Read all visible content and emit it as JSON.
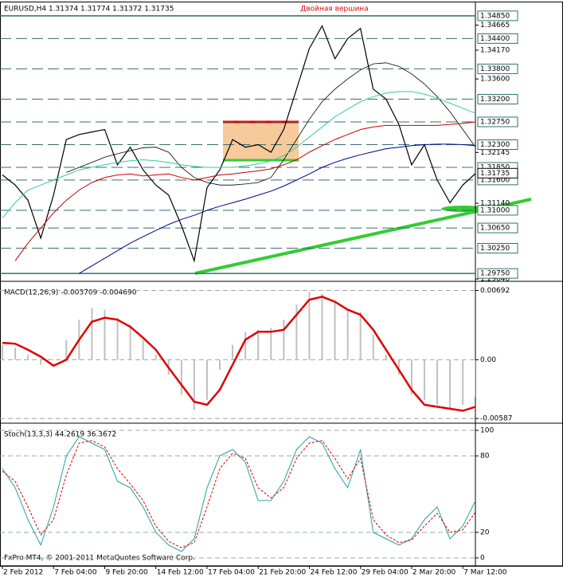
{
  "chart_data": [
    {
      "type": "line",
      "title": "EURUSD,H4  1.31374 1.31774 1.31372 1.31735",
      "annotation": "Двойная вершина",
      "ylim": [
        1.2961,
        1.351
      ],
      "yticks": [
        1.34665,
        {
          "value": 1.3417,
          "label": "1.34170"
        },
        {
          "value": 1.336,
          "label": "1.33600"
        },
        1.32145,
        {
          "value": 1.3114,
          "label": "1.31140"
        },
        {
          "value": 1.2964,
          "label": "1.29640"
        }
      ],
      "levels": [
        {
          "value": 1.3485,
          "label": "1.34850"
        },
        {
          "value": 1.344,
          "label": "1.34400"
        },
        {
          "value": 1.338,
          "label": "1.33800"
        },
        {
          "value": 1.332,
          "label": "1.33200"
        },
        {
          "value": 1.3275,
          "label": "1.32750"
        },
        {
          "value": 1.323,
          "label": "1.32300"
        },
        {
          "value": 1.3185,
          "label": "1.31850"
        },
        {
          "value": 1.316,
          "label": "1.31600"
        },
        {
          "value": 1.31,
          "label": "1.31000"
        },
        {
          "value": 1.3065,
          "label": "1.30650"
        },
        {
          "value": 1.3025,
          "label": "1.30250"
        },
        {
          "value": 1.2975,
          "label": "1.29750"
        }
      ],
      "last_price": {
        "value": 1.31735,
        "label": "1.31735"
      },
      "level_color": "#2f6f6f",
      "series": [
        {
          "color": "#000000",
          "width": 1.2,
          "values": [
            1.317,
            1.315,
            1.312,
            1.3045,
            1.313,
            1.324,
            1.325,
            1.3255,
            1.326,
            1.319,
            1.3225,
            1.318,
            1.315,
            1.313,
            1.307,
            1.3,
            1.3145,
            1.318,
            1.324,
            1.3225,
            1.323,
            1.3215,
            1.326,
            1.334,
            1.342,
            1.3465,
            1.34,
            1.344,
            1.346,
            1.334,
            1.332,
            1.327,
            1.319,
            1.323,
            1.316,
            1.3115,
            1.315,
            1.3173
          ]
        },
        {
          "color": "#000000",
          "width": 0.8,
          "values": [
            null,
            null,
            null,
            null,
            null,
            1.3175,
            1.3185,
            1.3195,
            1.3205,
            1.3212,
            1.3218,
            1.3224,
            1.3225,
            1.3215,
            1.3185,
            1.3165,
            1.3155,
            1.315,
            1.315,
            1.3152,
            1.3155,
            1.3165,
            1.32,
            1.324,
            1.328,
            1.3315,
            1.334,
            1.336,
            1.3378,
            1.339,
            1.3392,
            1.3385,
            1.337,
            1.335,
            1.3325,
            1.3295,
            1.326,
            1.3225
          ]
        },
        {
          "color": "#33cc99",
          "width": 1,
          "values": [
            1.3085,
            1.3115,
            1.314,
            1.315,
            1.316,
            1.317,
            1.318,
            1.3185,
            1.319,
            1.3195,
            1.3198,
            1.32,
            1.3198,
            1.3195,
            1.319,
            1.3187,
            1.3185,
            1.3185,
            1.3185,
            1.3188,
            1.3192,
            1.3198,
            1.3208,
            1.3225,
            1.3245,
            1.3265,
            1.3285,
            1.33,
            1.3315,
            1.3325,
            1.3332,
            1.3335,
            1.3335,
            1.333,
            1.3322,
            1.3312,
            1.3302,
            1.3292
          ]
        },
        {
          "color": "#cc0000",
          "width": 1,
          "values": [
            null,
            1.3,
            1.3035,
            1.3065,
            1.3095,
            1.312,
            1.314,
            1.3155,
            1.3165,
            1.317,
            1.3172,
            1.3168,
            1.317,
            1.3172,
            1.3165,
            1.316,
            1.3165,
            1.317,
            1.3172,
            1.3175,
            1.3178,
            1.3182,
            1.319,
            1.32,
            1.3215,
            1.3228,
            1.324,
            1.325,
            1.326,
            1.3265,
            1.3268,
            1.3268,
            1.3268,
            1.3268,
            1.3268,
            1.327,
            1.3272,
            1.3275
          ]
        },
        {
          "color": "#00008b",
          "width": 1,
          "values": [
            null,
            null,
            null,
            null,
            null,
            null,
            1.2975,
            1.299,
            1.3005,
            1.302,
            1.3035,
            1.3048,
            1.306,
            1.3072,
            1.3082,
            1.309,
            1.31,
            1.3108,
            1.3115,
            1.3122,
            1.313,
            1.3138,
            1.3148,
            1.316,
            1.3172,
            1.3185,
            1.3195,
            1.3203,
            1.321,
            1.3216,
            1.3222,
            1.3225,
            1.3228,
            1.323,
            1.3231,
            1.3231,
            1.323,
            1.3228
          ]
        }
      ]
    },
    {
      "type": "line",
      "title": "MACD(12,26,9) -0.003709 -0.004690",
      "ylim": [
        -0.0061,
        0.0076
      ],
      "yticks": [
        0.00692,
        {
          "value": 0,
          "label": "0.00"
        },
        -0.00587
      ],
      "series": [
        {
          "type": "bar",
          "color": "#c0c0c0",
          "values": [
            0.0015,
            0.0012,
            0.0005,
            -0.0005,
            0,
            0.002,
            0.004,
            0.0052,
            0.005,
            0.0042,
            0.0035,
            0.002,
            0.0005,
            -0.0015,
            -0.0035,
            -0.005,
            -0.004,
            -0.001,
            0.0015,
            0.0028,
            0.003,
            0.0032,
            0.004,
            0.0055,
            0.0068,
            0.0066,
            0.0058,
            0.005,
            0.0048,
            0.0025,
            0.0005,
            -0.0015,
            -0.0035,
            -0.004,
            -0.0045,
            -0.005,
            -0.0045,
            -0.0037
          ]
        },
        {
          "type": "line",
          "color": "#e00000",
          "width": 2.5,
          "values": [
            0.0017,
            0.0016,
            0.001,
            0.0003,
            -0.0006,
            0,
            0.002,
            0.0038,
            0.0042,
            0.004,
            0.0033,
            0.0022,
            0.001,
            -0.0008,
            -0.0025,
            -0.0042,
            -0.0045,
            -0.003,
            -0.0005,
            0.002,
            0.0028,
            0.0028,
            0.003,
            0.0045,
            0.006,
            0.0063,
            0.0058,
            0.005,
            0.0045,
            0.003,
            0.001,
            -0.001,
            -0.003,
            -0.0045,
            -0.0047,
            -0.0049,
            -0.0051,
            -0.0047
          ]
        }
      ]
    },
    {
      "type": "line",
      "title": "Stoch(13,3,3) 44.2619 36.3672",
      "footer": "FxPro MT4, © 2001-2011 MetaQuotes Software Corp.",
      "ylim": [
        -5,
        104.4
      ],
      "yticks": [
        100,
        80,
        20,
        0
      ],
      "categories": [
        "2 Feb 2012",
        null,
        null,
        null,
        "7 Feb 04:00",
        null,
        null,
        null,
        "9 Feb 20:00",
        null,
        null,
        null,
        "14 Feb 12:00",
        null,
        null,
        null,
        "17 Feb 04:00",
        null,
        null,
        null,
        "21 Feb 20:00",
        null,
        null,
        null,
        "24 Feb 12:00",
        null,
        null,
        null,
        "29 Feb 04:00",
        null,
        null,
        null,
        "2 Mar 20:00",
        null,
        null,
        null,
        "7 Mar 12:00",
        null
      ],
      "series": [
        {
          "type": "line",
          "color": "#20a0a0",
          "width": 1,
          "values": [
            70,
            55,
            30,
            10,
            40,
            80,
            95,
            90,
            85,
            60,
            55,
            40,
            20,
            10,
            5,
            15,
            55,
            80,
            85,
            75,
            45,
            45,
            60,
            85,
            95,
            90,
            70,
            55,
            85,
            20,
            15,
            10,
            15,
            30,
            40,
            15,
            25,
            45
          ]
        },
        {
          "type": "line",
          "color": "#dd0000",
          "width": 1,
          "dash": true,
          "values": [
            68,
            60,
            40,
            18,
            30,
            65,
            90,
            92,
            87,
            70,
            58,
            45,
            25,
            13,
            8,
            12,
            40,
            70,
            82,
            78,
            55,
            47,
            55,
            78,
            90,
            92,
            78,
            62,
            78,
            30,
            18,
            12,
            14,
            25,
            35,
            20,
            22,
            36
          ]
        }
      ]
    }
  ]
}
